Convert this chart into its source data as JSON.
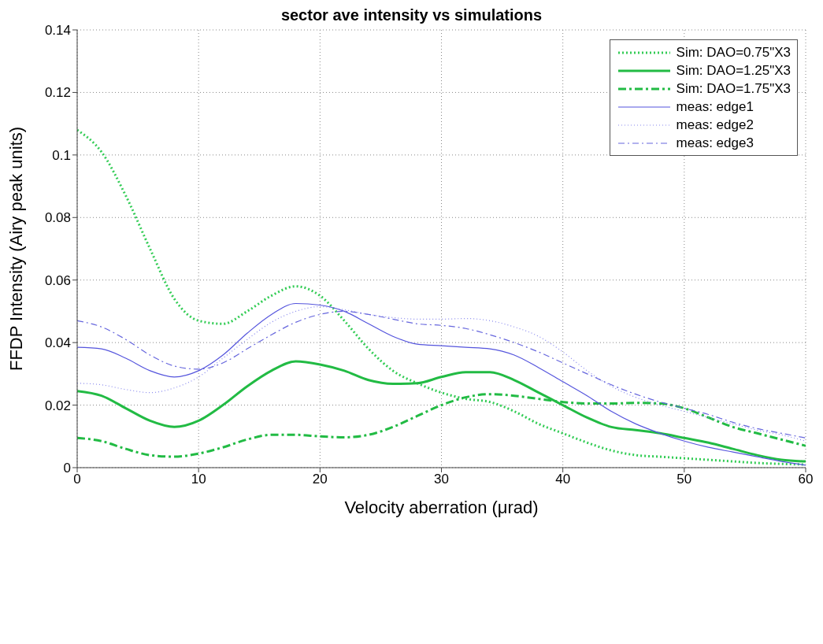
{
  "chart_data": {
    "type": "line",
    "title": "sector ave intensity vs simulations",
    "xlabel": "Velocity aberration (μrad)",
    "ylabel": "FFDP Intensity (Airy peak units)",
    "x": [
      0,
      2,
      4,
      6,
      8,
      10,
      12,
      14,
      16,
      18,
      20,
      22,
      24,
      26,
      28,
      30,
      32,
      34,
      36,
      38,
      40,
      42,
      44,
      46,
      48,
      50,
      52,
      54,
      56,
      58,
      60
    ],
    "series": [
      {
        "name": "Sim: DAO=0.75\"X3",
        "color": "#33cc55",
        "line_style": "dotted",
        "values": [
          0.108,
          0.101,
          0.087,
          0.07,
          0.054,
          0.047,
          0.046,
          0.05,
          0.055,
          0.058,
          0.055,
          0.047,
          0.038,
          0.031,
          0.027,
          0.024,
          0.022,
          0.021,
          0.018,
          0.014,
          0.011,
          0.008,
          0.0055,
          0.004,
          0.0035,
          0.003,
          0.0025,
          0.002,
          0.0015,
          0.0012,
          0.001
        ]
      },
      {
        "name": "Sim: DAO=1.25\"X3",
        "color": "#22bb44",
        "line_style": "solid",
        "values": [
          0.0245,
          0.023,
          0.019,
          0.015,
          0.013,
          0.015,
          0.02,
          0.026,
          0.031,
          0.034,
          0.033,
          0.031,
          0.028,
          0.0268,
          0.027,
          0.029,
          0.0305,
          0.0305,
          0.028,
          0.024,
          0.02,
          0.016,
          0.013,
          0.012,
          0.011,
          0.0095,
          0.008,
          0.006,
          0.004,
          0.0025,
          0.002
        ]
      },
      {
        "name": "Sim: DAO=1.75\"X3",
        "color": "#22bb44",
        "line_style": "dashed",
        "values": [
          0.0095,
          0.0085,
          0.006,
          0.004,
          0.0035,
          0.0045,
          0.0065,
          0.009,
          0.0105,
          0.0105,
          0.01,
          0.0097,
          0.0105,
          0.013,
          0.0165,
          0.02,
          0.0225,
          0.0235,
          0.023,
          0.022,
          0.021,
          0.0205,
          0.0205,
          0.0207,
          0.0205,
          0.019,
          0.016,
          0.013,
          0.011,
          0.009,
          0.007
        ]
      },
      {
        "name": "meas: edge1",
        "color": "#5555dd",
        "line_style": "solid",
        "values": [
          0.0385,
          0.038,
          0.035,
          0.031,
          0.029,
          0.031,
          0.036,
          0.043,
          0.049,
          0.0525,
          0.052,
          0.05,
          0.046,
          0.042,
          0.0395,
          0.039,
          0.0385,
          0.038,
          0.036,
          0.032,
          0.0275,
          0.023,
          0.018,
          0.014,
          0.011,
          0.0085,
          0.0065,
          0.005,
          0.0035,
          0.002,
          0.0008
        ]
      },
      {
        "name": "meas: edge2",
        "color": "#8888ee",
        "line_style": "dotted",
        "values": [
          0.027,
          0.0265,
          0.025,
          0.024,
          0.0255,
          0.029,
          0.035,
          0.041,
          0.0465,
          0.05,
          0.0515,
          0.0505,
          0.049,
          0.048,
          0.0475,
          0.0475,
          0.0477,
          0.047,
          0.045,
          0.042,
          0.037,
          0.031,
          0.026,
          0.0225,
          0.02,
          0.018,
          0.016,
          0.014,
          0.012,
          0.0105,
          0.0085
        ]
      },
      {
        "name": "meas: edge3",
        "color": "#6666dd",
        "line_style": "dashed",
        "values": [
          0.047,
          0.045,
          0.041,
          0.036,
          0.0325,
          0.0315,
          0.0335,
          0.038,
          0.0425,
          0.0465,
          0.049,
          0.05,
          0.049,
          0.0475,
          0.046,
          0.0455,
          0.0445,
          0.0425,
          0.04,
          0.037,
          0.0335,
          0.03,
          0.0265,
          0.0235,
          0.021,
          0.019,
          0.017,
          0.0145,
          0.0125,
          0.011,
          0.0095
        ]
      }
    ],
    "xlim": [
      0,
      60
    ],
    "xticks": [
      0,
      10,
      20,
      30,
      40,
      50,
      60
    ],
    "ylim": [
      0,
      0.14
    ],
    "yticks": [
      0,
      0.02,
      0.04,
      0.06,
      0.08,
      0.1,
      0.12,
      0.14
    ],
    "grid": true,
    "legend": "top right",
    "marker": "none"
  }
}
